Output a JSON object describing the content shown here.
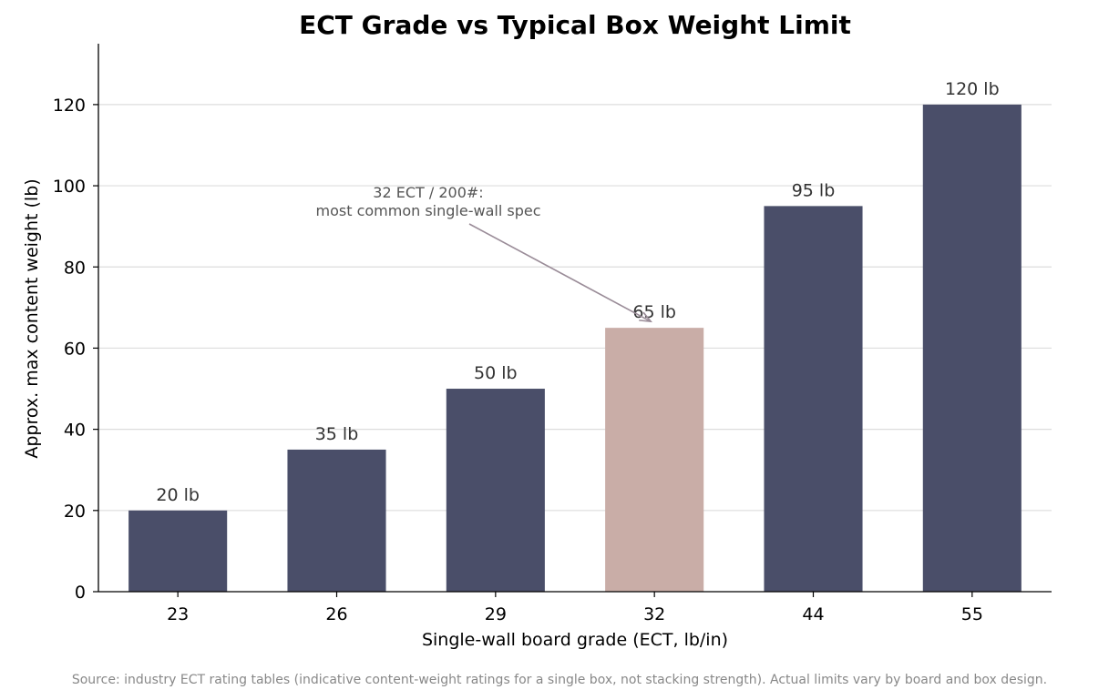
{
  "chart_data": {
    "type": "bar",
    "title": "ECT Grade vs Typical Box Weight Limit",
    "xlabel": "Single-wall board grade (ECT, lb/in)",
    "ylabel": "Approx. max content weight (lb)",
    "categories": [
      "23",
      "26",
      "29",
      "32",
      "44",
      "55"
    ],
    "values": [
      20,
      35,
      50,
      65,
      95,
      120
    ],
    "data_labels": [
      "20 lb",
      "35 lb",
      "50 lb",
      "65 lb",
      "95 lb",
      "120 lb"
    ],
    "ylim": [
      0,
      135
    ],
    "yticks": [
      0,
      20,
      40,
      60,
      80,
      100,
      120
    ],
    "grid": "horizontal",
    "highlight_index": 3,
    "colors": {
      "bar": "#4a4e69",
      "highlight": "#c9ada7",
      "grid": "#dddddd",
      "arrow": "#9a8c98"
    },
    "annotation": {
      "lines": [
        "32 ECT / 200#:",
        "most common single-wall spec"
      ],
      "target_index": 3
    },
    "source": "Source: industry ECT rating tables (indicative content-weight ratings for a single box, not stacking strength). Actual limits vary by board and box design."
  }
}
